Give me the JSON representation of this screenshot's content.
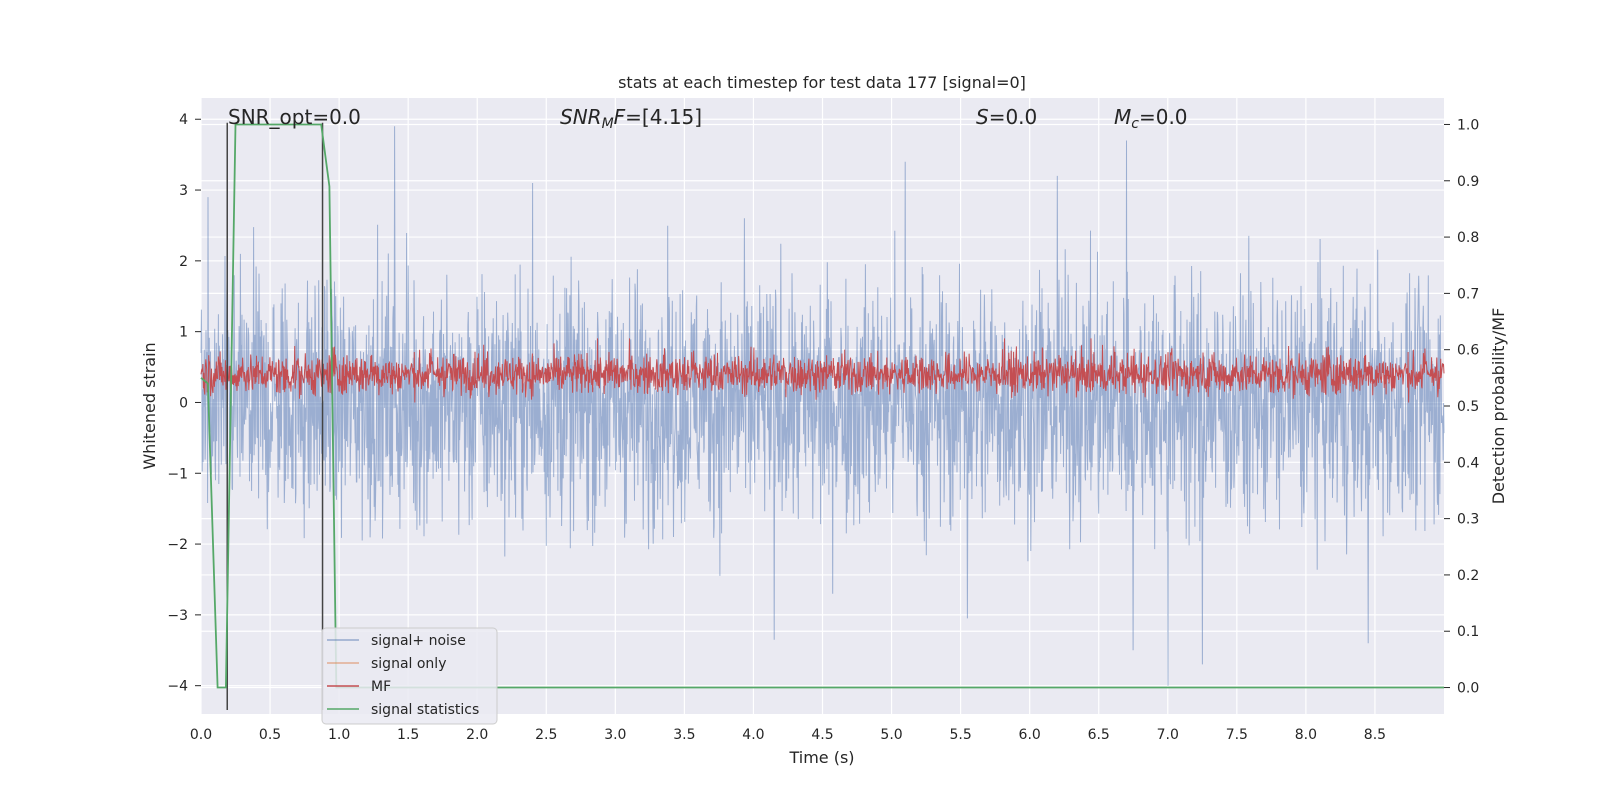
{
  "chart_data": {
    "type": "line",
    "title": "stats at each timestep for test data 177 [signal=0]",
    "xlabel": "Time (s)",
    "ylabel": "Whitened strain",
    "y2label": "Detection probability/MF",
    "xlim": [
      0.0,
      9.0
    ],
    "ylim": [
      -4.4,
      4.3
    ],
    "y2lim": [
      -0.047,
      1.047
    ],
    "x_ticks": [
      0.0,
      0.5,
      1.0,
      1.5,
      2.0,
      2.5,
      3.0,
      3.5,
      4.0,
      4.5,
      5.0,
      5.5,
      6.0,
      6.5,
      7.0,
      7.5,
      8.0,
      8.5
    ],
    "x_tick_labels": [
      "0.0",
      "0.5",
      "1.0",
      "1.5",
      "2.0",
      "2.5",
      "3.0",
      "3.5",
      "4.0",
      "4.5",
      "5.0",
      "5.5",
      "6.0",
      "6.5",
      "7.0",
      "7.5",
      "8.0",
      "8.5"
    ],
    "y_ticks": [
      -4,
      -3,
      -2,
      -1,
      0,
      1,
      2,
      3,
      4
    ],
    "y_tick_labels": [
      "−4",
      "−3",
      "−2",
      "−1",
      "0",
      "1",
      "2",
      "3",
      "4"
    ],
    "y2_ticks": [
      0.0,
      0.1,
      0.2,
      0.3,
      0.4,
      0.5,
      0.6,
      0.7,
      0.8,
      0.9,
      1.0
    ],
    "y2_tick_labels": [
      "0.0",
      "0.1",
      "0.2",
      "0.3",
      "0.4",
      "0.5",
      "0.6",
      "0.7",
      "0.8",
      "0.9",
      "1.0"
    ],
    "grid": true,
    "legend_position": "lower-left",
    "annotations": [
      {
        "text": "SNR_opt=0.0",
        "x": 0.19,
        "y": 4.0
      },
      {
        "text": "SNR_MF=[4.15]",
        "x": 2.6,
        "y": 4.0
      },
      {
        "text": "S=0.0",
        "x": 5.6,
        "y": 4.0
      },
      {
        "text": "M_c=0.0",
        "x": 6.6,
        "y": 4.0
      }
    ],
    "vertical_lines": [
      0.19,
      0.88
    ],
    "series": [
      {
        "name": "signal+ noise",
        "color": "#4c72b0",
        "axis": "left",
        "description_values": "dense noise, typical amplitude about ±1.6 with spikes reaching +3.9 and −4.0",
        "peaks": [
          [
            0.05,
            2.9
          ],
          [
            1.4,
            3.9
          ],
          [
            2.4,
            3.1
          ],
          [
            5.1,
            3.4
          ],
          [
            5.55,
            3.6
          ],
          [
            6.2,
            3.2
          ],
          [
            6.7,
            3.7
          ],
          [
            4.15,
            -3.35
          ],
          [
            6.75,
            -3.5
          ],
          [
            7.0,
            -4.0
          ],
          [
            7.25,
            -3.7
          ],
          [
            8.45,
            -3.4
          ],
          [
            5.55,
            -3.05
          ]
        ]
      },
      {
        "name": "signal only",
        "color": "#dd8452",
        "axis": "left",
        "values": []
      },
      {
        "name": "MF",
        "color": "#c44e52",
        "axis": "right",
        "description_values": "noisy matched-filter output ranging about 0.5 to 0.62",
        "band": [
          0.5,
          0.62
        ]
      },
      {
        "name": "signal statistics",
        "color": "#55a868",
        "axis": "right",
        "x": [
          0.0,
          0.05,
          0.12,
          0.18,
          0.25,
          0.87,
          0.93,
          0.98,
          1.0,
          9.0
        ],
        "values": [
          0.55,
          0.54,
          0.0,
          0.0,
          1.0,
          1.0,
          0.89,
          0.0,
          0.0,
          0.0
        ]
      }
    ]
  }
}
